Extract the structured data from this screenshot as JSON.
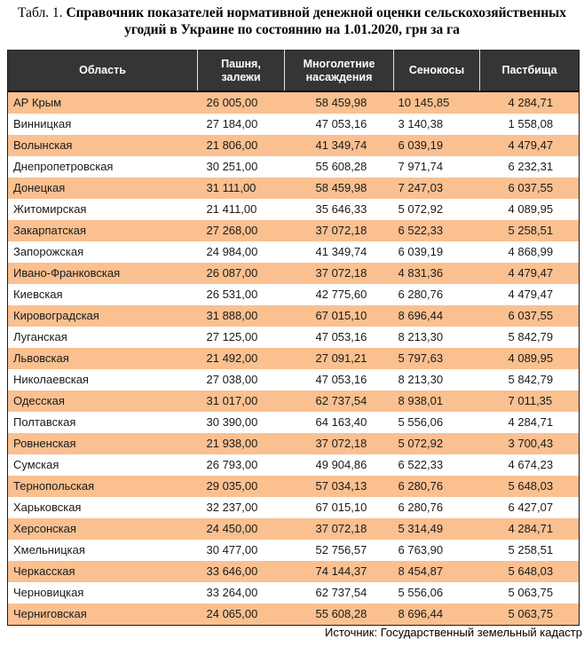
{
  "title": {
    "prefix": "Табл. 1.",
    "line1": "Справочник показателей нормативной денежной оценки сельскохозяйственных",
    "line2": "угодий в Украине по состоянию на 1.01.2020, грн за га"
  },
  "colors": {
    "header_bg": "#353535",
    "header_text": "#FFFFFF",
    "stripe_orange": "#FAC090",
    "row_white": "#FFFFFF"
  },
  "table": {
    "columns": [
      {
        "id": "oblast",
        "label": "Область"
      },
      {
        "id": "arable",
        "label": "Пашня,\nзалежи"
      },
      {
        "id": "perennial",
        "label": "Многолетние\nнасаждения"
      },
      {
        "id": "hayfields",
        "label": "Сенокосы"
      },
      {
        "id": "pastures",
        "label": "Пастбища"
      }
    ],
    "rows": [
      {
        "region": "АР Крым",
        "values": [
          "26 005,00",
          "58 459,98",
          "10 145,85",
          "4 284,71"
        ]
      },
      {
        "region": "Винницкая",
        "values": [
          "27 184,00",
          "47 053,16",
          "3 140,38",
          "1 558,08"
        ]
      },
      {
        "region": "Волынская",
        "values": [
          "21 806,00",
          "41 349,74",
          "6 039,19",
          "4 479,47"
        ]
      },
      {
        "region": "Днепропетровская",
        "values": [
          "30 251,00",
          "55 608,28",
          "7 971,74",
          "6 232,31"
        ]
      },
      {
        "region": "Донецкая",
        "values": [
          "31 111,00",
          "58 459,98",
          "7 247,03",
          "6 037,55"
        ]
      },
      {
        "region": "Житомирская",
        "values": [
          "21 411,00",
          "35 646,33",
          "5 072,92",
          "4 089,95"
        ]
      },
      {
        "region": "Закарпатская",
        "values": [
          "27 268,00",
          "37 072,18",
          "6 522,33",
          "5 258,51"
        ]
      },
      {
        "region": "Запорожская",
        "values": [
          "24 984,00",
          "41 349,74",
          "6 039,19",
          "4 868,99"
        ]
      },
      {
        "region": "Ивано-Франковская",
        "values": [
          "26 087,00",
          "37 072,18",
          "4 831,36",
          "4 479,47"
        ]
      },
      {
        "region": "Киевская",
        "values": [
          "26 531,00",
          "42 775,60",
          "6 280,76",
          "4 479,47"
        ]
      },
      {
        "region": "Кировоградская",
        "values": [
          "31 888,00",
          "67 015,10",
          "8 696,44",
          "6 037,55"
        ]
      },
      {
        "region": "Луганская",
        "values": [
          "27 125,00",
          "47 053,16",
          "8 213,30",
          "5 842,79"
        ]
      },
      {
        "region": "Львовская",
        "values": [
          "21 492,00",
          "27 091,21",
          "5 797,63",
          "4 089,95"
        ]
      },
      {
        "region": "Николаевская",
        "values": [
          "27 038,00",
          "47 053,16",
          "8 213,30",
          "5 842,79"
        ]
      },
      {
        "region": "Одесская",
        "values": [
          "31 017,00",
          "62 737,54",
          "8 938,01",
          "7 011,35"
        ]
      },
      {
        "region": "Полтавская",
        "values": [
          "30 390,00",
          "64 163,40",
          "5 556,06",
          "4 284,71"
        ]
      },
      {
        "region": "Ровненская",
        "values": [
          "21 938,00",
          "37 072,18",
          "5 072,92",
          "3 700,43"
        ]
      },
      {
        "region": "Сумская",
        "values": [
          "26 793,00",
          "49 904,86",
          "6 522,33",
          "4 674,23"
        ]
      },
      {
        "region": "Тернопольская",
        "values": [
          "29 035,00",
          "57 034,13",
          "6 280,76",
          "5 648,03"
        ]
      },
      {
        "region": "Харьковская",
        "values": [
          "32 237,00",
          "67 015,10",
          "6 280,76",
          "6 427,07"
        ]
      },
      {
        "region": "Херсонская",
        "values": [
          "24 450,00",
          "37 072,18",
          "5 314,49",
          "4 284,71"
        ]
      },
      {
        "region": "Хмельницкая",
        "values": [
          "30 477,00",
          "52 756,57",
          "6 763,90",
          "5 258,51"
        ]
      },
      {
        "region": "Черкасская",
        "values": [
          "33 646,00",
          "74 144,37",
          "8 454,87",
          "5 648,03"
        ]
      },
      {
        "region": "Черновицкая",
        "values": [
          "33 264,00",
          "62 737,54",
          "5 556,06",
          "5 063,75"
        ]
      },
      {
        "region": "Черниговская",
        "values": [
          "24 065,00",
          "55 608,28",
          "8 696,44",
          "5 063,75"
        ]
      }
    ]
  },
  "source": {
    "text": "Источник: Государственный земельный кадастр"
  }
}
